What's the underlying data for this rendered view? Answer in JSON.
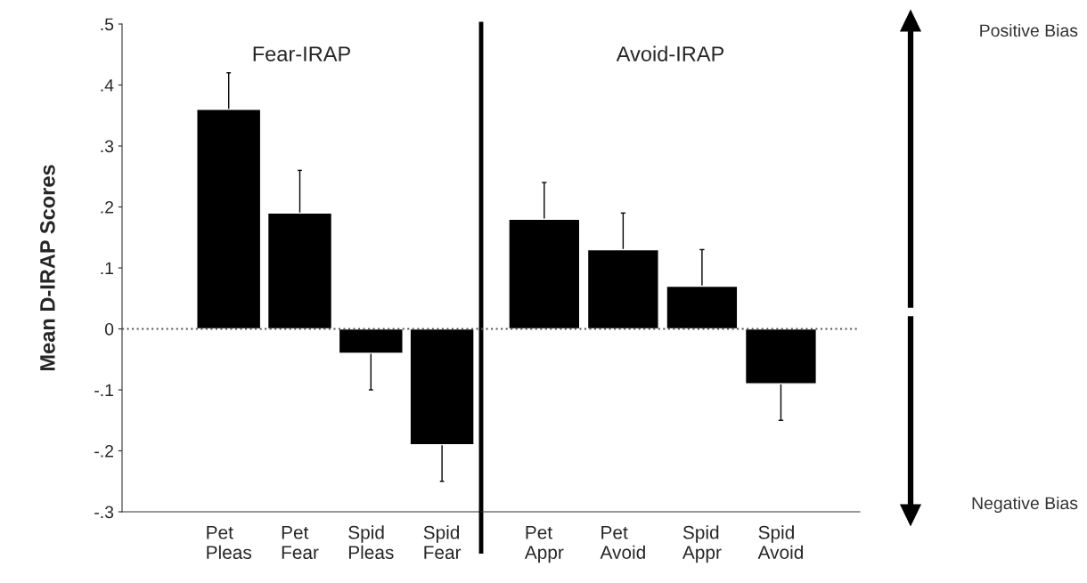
{
  "chart_data": [
    {
      "type": "bar",
      "title": "Fear-IRAP",
      "ylabel": "Mean D-IRAP Scores",
      "categories": [
        "Pet\nPleas",
        "Pet\nFear",
        "Spid\nPleas",
        "Spid\nFear"
      ],
      "values": [
        0.36,
        0.19,
        -0.04,
        -0.19
      ],
      "color": "#000000",
      "errors": [
        [
          0.36,
          0.42
        ],
        [
          0.19,
          0.26
        ],
        [
          -0.1,
          -0.04
        ],
        [
          -0.25,
          -0.19
        ]
      ],
      "ylim": [
        -0.3,
        0.5
      ],
      "yticks": [
        {
          "value": -0.3,
          "label": "-.3"
        },
        {
          "value": -0.2,
          "label": "-.2"
        },
        {
          "value": -0.1,
          "label": "-.1"
        },
        0,
        {
          "value": 0.1,
          "label": ".1"
        },
        {
          "value": 0.2,
          "label": ".2"
        },
        {
          "value": 0.3,
          "label": ".3"
        },
        {
          "value": 0.4,
          "label": ".4"
        },
        {
          "value": 0.5,
          "label": ".5"
        }
      ],
      "ref_lines": [
        {
          "axis": "y",
          "value": 0,
          "color": "#555555",
          "line_style": "dotted"
        }
      ]
    },
    {
      "type": "bar",
      "title": "Avoid-IRAP",
      "categories": [
        "Pet\nAppr",
        "Pet\nAvoid",
        "Spid\nAppr",
        "Spid\nAvoid"
      ],
      "values": [
        0.18,
        0.13,
        0.07,
        -0.09
      ],
      "color": "#000000",
      "errors": [
        [
          0.18,
          0.24
        ],
        [
          0.13,
          0.19
        ],
        [
          0.07,
          0.13
        ],
        [
          -0.15,
          -0.09
        ]
      ],
      "ylim": [
        -0.3,
        0.5
      ],
      "tick_labels": "x",
      "ref_lines": [
        {
          "axis": "y",
          "value": 0,
          "color": "#555555",
          "line_style": "dotted"
        }
      ],
      "annotations": [
        "Positive Bias",
        "Negative Bias"
      ]
    }
  ]
}
